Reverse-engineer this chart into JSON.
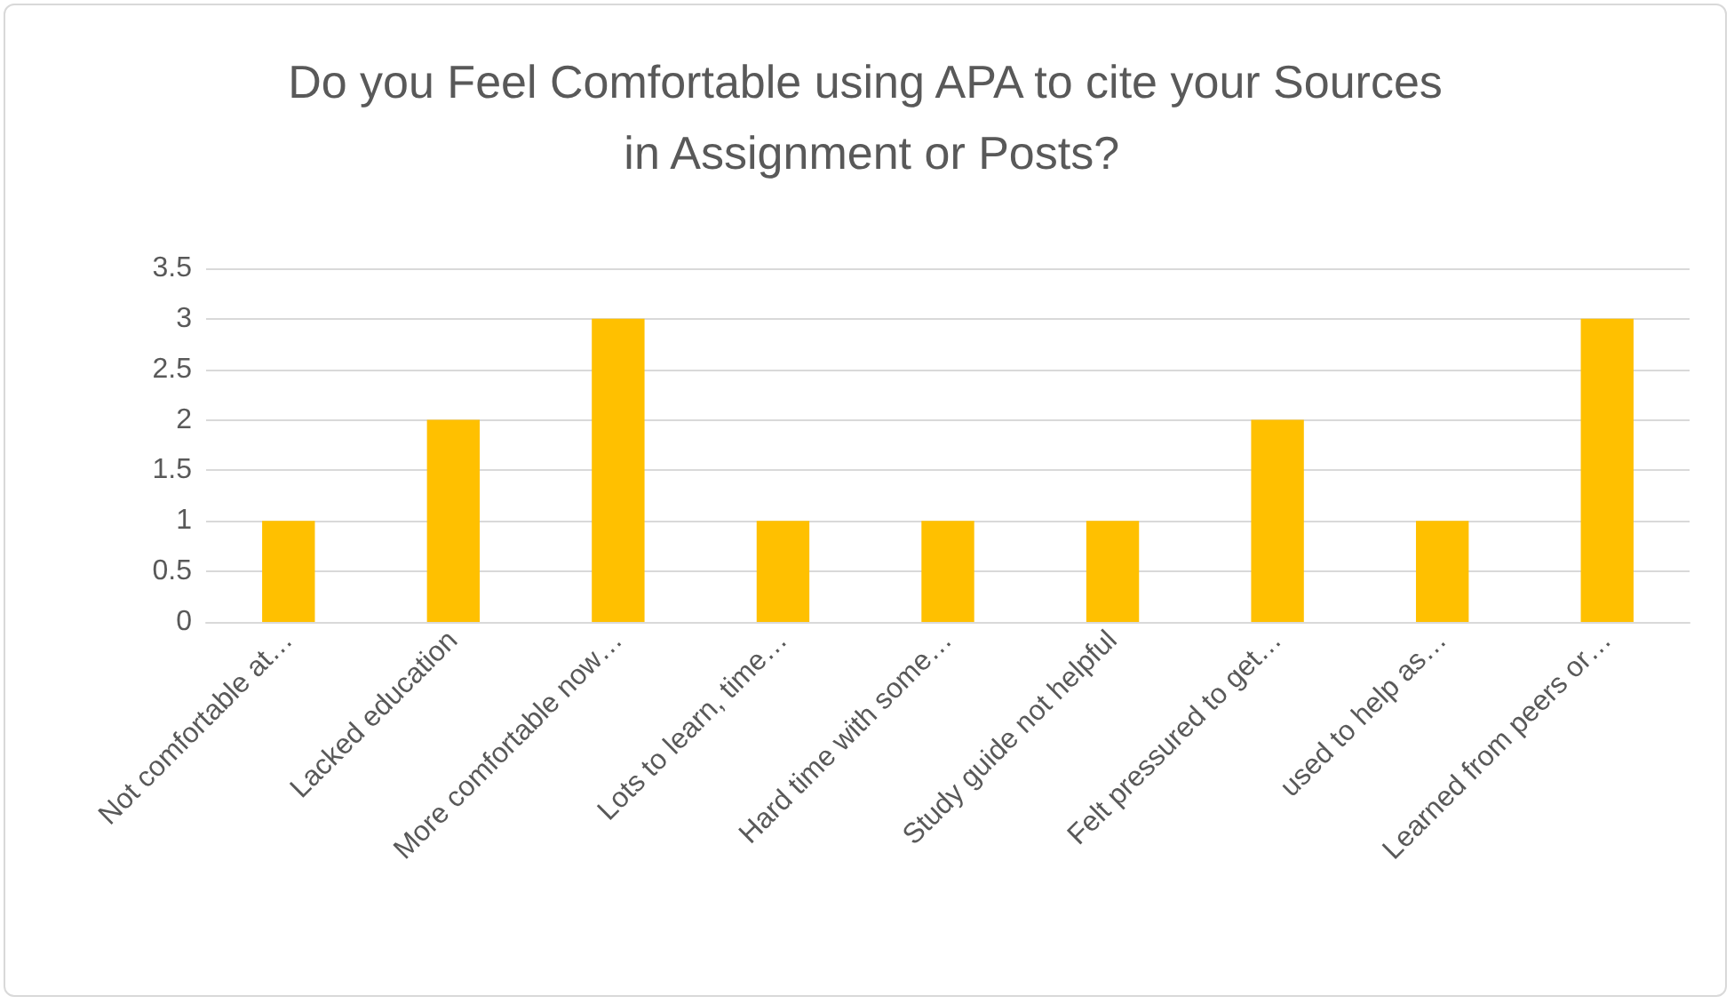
{
  "chart_data": {
    "type": "bar",
    "title": "Do you Feel Comfortable using APA to cite your Sources in Assignment or Posts?",
    "categories": [
      "Not comfortable at…",
      "Lacked education",
      "More comfortable now…",
      "Lots to learn, time…",
      "Hard time with some…",
      "Study guide not helpful",
      "Felt pressured to get…",
      "used to help as…",
      "Learned from peers or…"
    ],
    "values": [
      1,
      2,
      3,
      1,
      1,
      1,
      2,
      1,
      3
    ],
    "color": "#ffc000",
    "ylim": [
      0,
      3.5
    ],
    "yticks": [
      0,
      0.5,
      1,
      1.5,
      2,
      2.5,
      3,
      3.5
    ],
    "grid": "y"
  }
}
